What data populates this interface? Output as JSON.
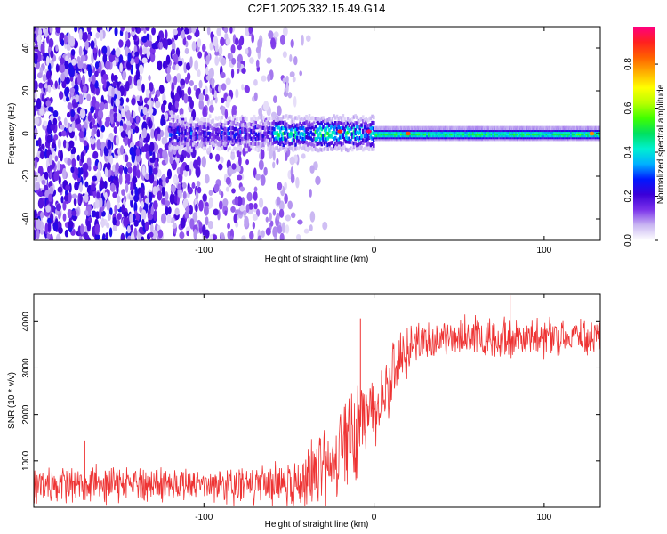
{
  "title": "C2E1.2025.332.15.49.G14",
  "chart_data": [
    {
      "type": "heatmap",
      "name": "radio-occultation-spectrogram",
      "title": "C2E1.2025.332.15.49.G14",
      "xlabel": "Height of straight line (km)",
      "ylabel": "Frequency (Hz)",
      "xlim": [
        -200,
        133
      ],
      "ylim": [
        -50,
        50
      ],
      "xticks": [
        -100,
        0,
        100
      ],
      "xtick_labels": [
        "-100",
        "0",
        "100"
      ],
      "yticks": [
        -40,
        -20,
        0,
        20,
        40
      ],
      "ytick_labels": [
        "-40",
        "-20",
        "0",
        "20",
        "40"
      ],
      "colorbar": {
        "label": "Normalized spectral amplitude",
        "range": [
          0,
          0.97
        ],
        "ticks": [
          0.0,
          0.2,
          0.4,
          0.6,
          0.8
        ],
        "tick_labels": [
          "0.0",
          "0.2",
          "0.4",
          "0.6",
          "0.8"
        ],
        "colors": [
          "#ffffff",
          "#c9b6f2",
          "#7b33ea",
          "#3b00d8",
          "#0018ff",
          "#00b0ff",
          "#00f0d0",
          "#00e060",
          "#40ff00",
          "#b8ff00",
          "#ffff00",
          "#ffb000",
          "#ff6000",
          "#ff2020",
          "#ff0080"
        ]
      },
      "features": {
        "noise_region_x": [
          -200,
          -55
        ],
        "signal_track": {
          "x": [
            -120,
            133
          ],
          "freq": [
            0,
            0
          ],
          "width_hz": [
            8,
            3
          ]
        },
        "peak_values": [
          {
            "x": -20,
            "freq": 1,
            "value": 0.9
          },
          {
            "x": -3,
            "freq": 1,
            "value": 0.95
          },
          {
            "x": 20,
            "freq": 0,
            "value": 0.85
          },
          {
            "x": 128,
            "freq": 0,
            "value": 0.8
          }
        ]
      }
    },
    {
      "type": "line",
      "name": "snr-profile",
      "xlabel": "Height of straight line (km)",
      "ylabel": "SNR (10 * v/v)",
      "xlim": [
        -200,
        133
      ],
      "ylim": [
        0,
        4600
      ],
      "xticks": [
        -100,
        0,
        100
      ],
      "xtick_labels": [
        "-100",
        "0",
        "100"
      ],
      "yticks": [
        1000,
        2000,
        3000,
        4000
      ],
      "ytick_labels": [
        "1000",
        "2000",
        "3000",
        "4000"
      ],
      "color": "#ee3333",
      "series": [
        {
          "name": "SNR",
          "x": [
            -200,
            -180,
            -160,
            -140,
            -120,
            -100,
            -80,
            -60,
            -45,
            -35,
            -25,
            -15,
            -10,
            -5,
            0,
            5,
            10,
            15,
            20,
            25,
            30,
            40,
            50,
            60,
            70,
            80,
            90,
            100,
            110,
            120,
            133
          ],
          "mean": [
            500,
            500,
            500,
            500,
            480,
            480,
            480,
            500,
            550,
            700,
            950,
            1500,
            1700,
            1900,
            2200,
            2500,
            2800,
            3100,
            3400,
            3550,
            3600,
            3650,
            3700,
            3700,
            3650,
            3650,
            3650,
            3650,
            3650,
            3650,
            3700
          ],
          "spread": [
            450,
            450,
            400,
            400,
            350,
            350,
            380,
            450,
            550,
            700,
            900,
            1100,
            1100,
            1000,
            1000,
            900,
            800,
            700,
            600,
            500,
            450,
            450,
            450,
            450,
            450,
            450,
            450,
            450,
            450,
            450,
            400
          ]
        }
      ],
      "spikes": [
        {
          "x": -8,
          "value": 4070
        },
        {
          "x": -170,
          "value": 1440
        },
        {
          "x": 80,
          "value": 4560
        }
      ]
    }
  ]
}
